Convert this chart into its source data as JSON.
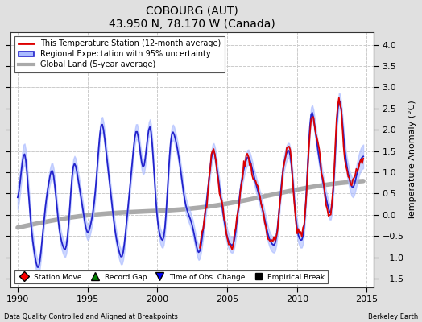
{
  "title": "COBOURG (AUT)",
  "subtitle": "43.950 N, 78.170 W (Canada)",
  "ylabel": "Temperature Anomaly (°C)",
  "xlabel_left": "Data Quality Controlled and Aligned at Breakpoints",
  "xlabel_right": "Berkeley Earth",
  "xlim": [
    1989.5,
    2015.5
  ],
  "ylim": [
    -1.7,
    4.3
  ],
  "yticks": [
    -1.5,
    -1,
    -0.5,
    0,
    0.5,
    1,
    1.5,
    2,
    2.5,
    3,
    3.5,
    4
  ],
  "xticks": [
    1990,
    1995,
    2000,
    2005,
    2010,
    2015
  ],
  "bg_color": "#ffffff",
  "fig_color": "#e0e0e0",
  "grid_color": "#cccccc",
  "station_color": "#dd0000",
  "regional_color": "#2222cc",
  "regional_fill_color": "#aabbff",
  "global_color": "#aaaaaa",
  "seed": 7
}
